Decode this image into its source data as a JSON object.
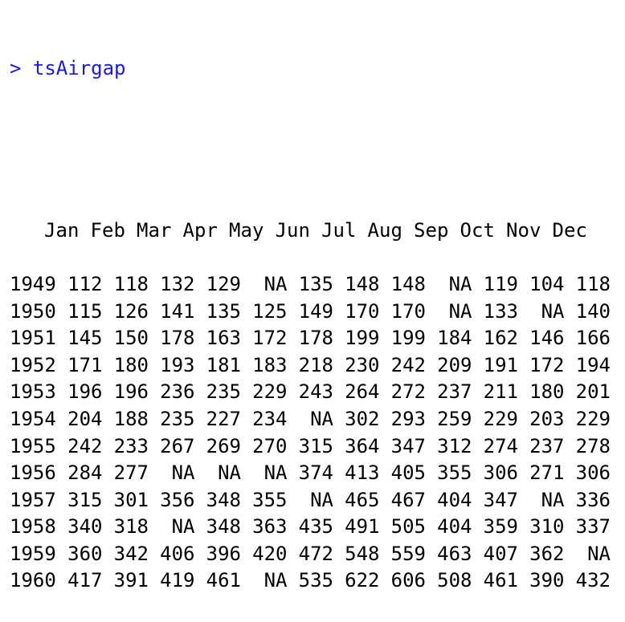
{
  "console": {
    "prompt": ">",
    "command": "tsAirgap",
    "colors": {
      "command": "#1a1ae6",
      "output": "#000000",
      "background": "#ffffff"
    }
  },
  "table": {
    "columns": [
      "Jan",
      "Feb",
      "Mar",
      "Apr",
      "May",
      "Jun",
      "Jul",
      "Aug",
      "Sep",
      "Oct",
      "Nov",
      "Dec"
    ],
    "rows": [
      {
        "year": "1949",
        "values": [
          "112",
          "118",
          "132",
          "129",
          "NA",
          "135",
          "148",
          "148",
          "NA",
          "119",
          "104",
          "118"
        ]
      },
      {
        "year": "1950",
        "values": [
          "115",
          "126",
          "141",
          "135",
          "125",
          "149",
          "170",
          "170",
          "NA",
          "133",
          "NA",
          "140"
        ]
      },
      {
        "year": "1951",
        "values": [
          "145",
          "150",
          "178",
          "163",
          "172",
          "178",
          "199",
          "199",
          "184",
          "162",
          "146",
          "166"
        ]
      },
      {
        "year": "1952",
        "values": [
          "171",
          "180",
          "193",
          "181",
          "183",
          "218",
          "230",
          "242",
          "209",
          "191",
          "172",
          "194"
        ]
      },
      {
        "year": "1953",
        "values": [
          "196",
          "196",
          "236",
          "235",
          "229",
          "243",
          "264",
          "272",
          "237",
          "211",
          "180",
          "201"
        ]
      },
      {
        "year": "1954",
        "values": [
          "204",
          "188",
          "235",
          "227",
          "234",
          "NA",
          "302",
          "293",
          "259",
          "229",
          "203",
          "229"
        ]
      },
      {
        "year": "1955",
        "values": [
          "242",
          "233",
          "267",
          "269",
          "270",
          "315",
          "364",
          "347",
          "312",
          "274",
          "237",
          "278"
        ]
      },
      {
        "year": "1956",
        "values": [
          "284",
          "277",
          "NA",
          "NA",
          "NA",
          "374",
          "413",
          "405",
          "355",
          "306",
          "271",
          "306"
        ]
      },
      {
        "year": "1957",
        "values": [
          "315",
          "301",
          "356",
          "348",
          "355",
          "NA",
          "465",
          "467",
          "404",
          "347",
          "NA",
          "336"
        ]
      },
      {
        "year": "1958",
        "values": [
          "340",
          "318",
          "NA",
          "348",
          "363",
          "435",
          "491",
          "505",
          "404",
          "359",
          "310",
          "337"
        ]
      },
      {
        "year": "1959",
        "values": [
          "360",
          "342",
          "406",
          "396",
          "420",
          "472",
          "548",
          "559",
          "463",
          "407",
          "362",
          "NA"
        ]
      },
      {
        "year": "1960",
        "values": [
          "417",
          "391",
          "419",
          "461",
          "NA",
          "535",
          "622",
          "606",
          "508",
          "461",
          "390",
          "432"
        ]
      }
    ]
  }
}
